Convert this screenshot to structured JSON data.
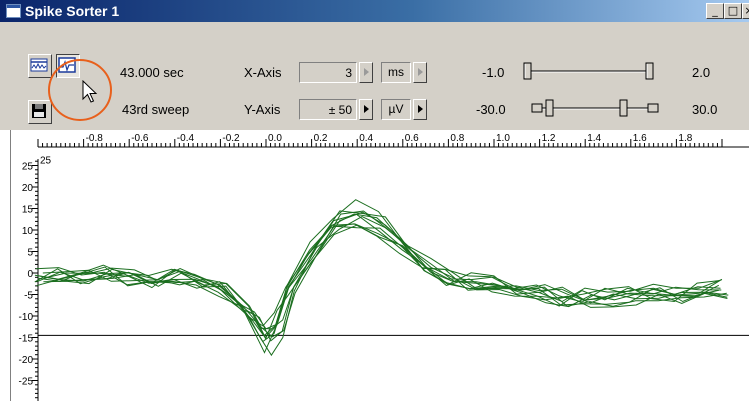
{
  "window": {
    "title": "Spike Sorter 1"
  },
  "caption_buttons": {
    "minimize": "_",
    "maximize": "□",
    "close": "×"
  },
  "status": {
    "time": "43.000 sec",
    "sweep": "43rd sweep"
  },
  "x_axis": {
    "label": "X-Axis",
    "value": "3",
    "unit": "ms"
  },
  "y_axis": {
    "label": "Y-Axis",
    "value": "± 50",
    "unit": "µV"
  },
  "slider1": {
    "min": "-1.0",
    "max": "2.0"
  },
  "slider2": {
    "min": "-30.0",
    "max": "30.0"
  },
  "chart_data": {
    "type": "line",
    "x_ticks": [
      "-0.8",
      "-0.6",
      "-0.4",
      "-0.2",
      "0.0",
      "0.2",
      "0.4",
      "0.6",
      "0.8",
      "1.0",
      "1.2",
      "1.4",
      "1.6",
      "1.8"
    ],
    "y_ticks": [
      "25",
      "20",
      "15",
      "10",
      "5",
      "0",
      "-5",
      "-10",
      "-15",
      "-20",
      "-25"
    ],
    "top_y_label": "25",
    "threshold": -14.5,
    "xlim": [
      -1.0,
      2.0
    ],
    "ylim": [
      -30,
      30
    ],
    "color": "#1b6e1f"
  }
}
